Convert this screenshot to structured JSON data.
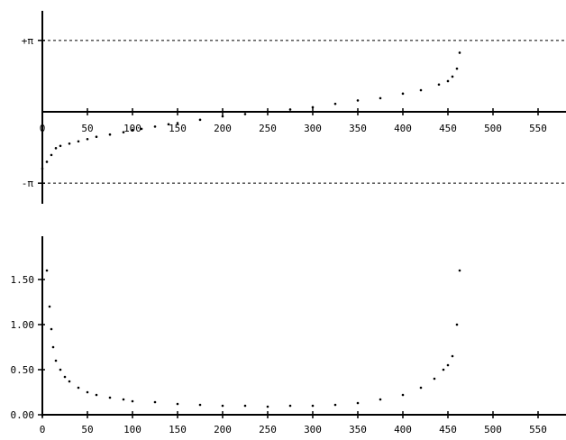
{
  "chart_data": [
    {
      "type": "scatter",
      "title": "",
      "xlabel": "",
      "ylabel": "",
      "xlim": [
        0,
        570
      ],
      "ylim": [
        -3.6,
        3.6
      ],
      "grid": false,
      "x_ticks": [
        "0",
        "50",
        "100",
        "150",
        "200",
        "250",
        "300",
        "350",
        "400",
        "450",
        "500",
        "550"
      ],
      "reference_lines": [
        {
          "label": "+π",
          "value": 3.1416
        },
        {
          "label": "-π",
          "value": -3.1416
        }
      ],
      "series": [
        {
          "points": [
            [
              0,
              -2.5
            ],
            [
              5,
              -2.2
            ],
            [
              10,
              -1.9
            ],
            [
              15,
              -1.6
            ],
            [
              20,
              -1.5
            ],
            [
              30,
              -1.4
            ],
            [
              40,
              -1.3
            ],
            [
              50,
              -1.2
            ],
            [
              60,
              -1.1
            ],
            [
              75,
              -1.0
            ],
            [
              90,
              -0.9
            ],
            [
              100,
              -0.8
            ],
            [
              110,
              -0.75
            ],
            [
              125,
              -0.65
            ],
            [
              140,
              -0.55
            ],
            [
              150,
              -0.5
            ],
            [
              175,
              -0.35
            ],
            [
              200,
              -0.2
            ],
            [
              225,
              -0.1
            ],
            [
              250,
              0.0
            ],
            [
              275,
              0.1
            ],
            [
              300,
              0.2
            ],
            [
              325,
              0.35
            ],
            [
              350,
              0.5
            ],
            [
              375,
              0.6
            ],
            [
              400,
              0.8
            ],
            [
              420,
              0.95
            ],
            [
              440,
              1.2
            ],
            [
              450,
              1.35
            ],
            [
              455,
              1.55
            ],
            [
              460,
              1.9
            ],
            [
              463,
              2.6
            ]
          ]
        }
      ]
    },
    {
      "type": "scatter",
      "title": "",
      "xlabel": "",
      "ylabel": "",
      "xlim": [
        0,
        570
      ],
      "ylim": [
        0,
        2.0
      ],
      "grid": false,
      "x_ticks": [
        "0",
        "50",
        "100",
        "150",
        "200",
        "250",
        "300",
        "350",
        "400",
        "450",
        "500",
        "550"
      ],
      "y_ticks": [
        "0.00",
        "0.50",
        "1.00",
        "1.50"
      ],
      "series": [
        {
          "points": [
            [
              5,
              1.6
            ],
            [
              8,
              1.2
            ],
            [
              10,
              0.95
            ],
            [
              12,
              0.75
            ],
            [
              15,
              0.6
            ],
            [
              20,
              0.5
            ],
            [
              25,
              0.42
            ],
            [
              30,
              0.37
            ],
            [
              40,
              0.3
            ],
            [
              50,
              0.25
            ],
            [
              60,
              0.22
            ],
            [
              75,
              0.19
            ],
            [
              90,
              0.17
            ],
            [
              100,
              0.15
            ],
            [
              125,
              0.14
            ],
            [
              150,
              0.12
            ],
            [
              175,
              0.11
            ],
            [
              200,
              0.1
            ],
            [
              225,
              0.1
            ],
            [
              250,
              0.09
            ],
            [
              275,
              0.1
            ],
            [
              300,
              0.1
            ],
            [
              325,
              0.11
            ],
            [
              350,
              0.13
            ],
            [
              375,
              0.17
            ],
            [
              400,
              0.22
            ],
            [
              420,
              0.3
            ],
            [
              435,
              0.4
            ],
            [
              445,
              0.5
            ],
            [
              450,
              0.55
            ],
            [
              455,
              0.65
            ],
            [
              460,
              1.0
            ],
            [
              463,
              1.6
            ]
          ]
        }
      ]
    }
  ]
}
